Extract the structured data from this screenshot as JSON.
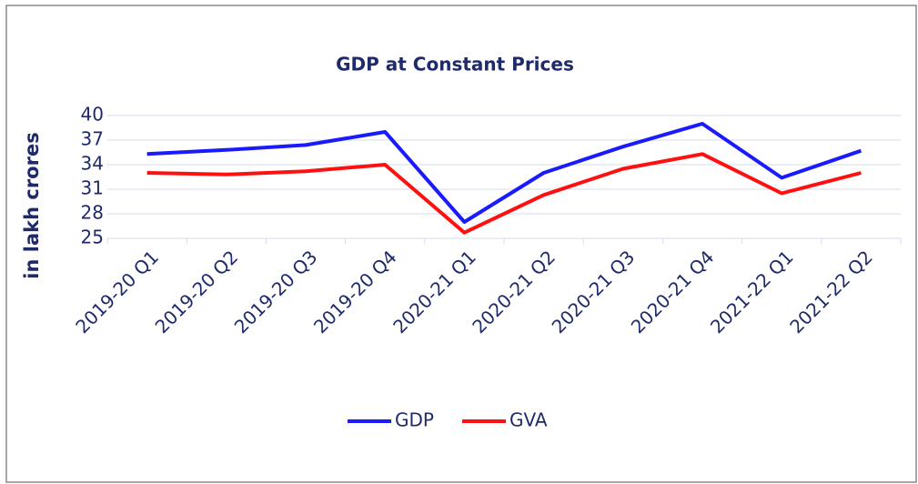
{
  "chart_data": {
    "type": "line",
    "title": "GDP at Constant Prices",
    "ylabel": "in lakh crores",
    "categories": [
      "2019-20 Q1",
      "2019-20 Q2",
      "2019-20 Q3",
      "2019-20 Q4",
      "2020-21 Q1",
      "2020-21 Q2",
      "2020-21 Q3",
      "2020-21 Q4",
      "2021-22 Q1",
      "2021-22 Q2"
    ],
    "series": [
      {
        "name": "GDP",
        "color": "#1a1aff",
        "values": [
          35.3,
          35.8,
          36.4,
          38.0,
          27.0,
          33.0,
          36.2,
          39.0,
          32.4,
          35.7
        ]
      },
      {
        "name": "GVA",
        "color": "#ff1010",
        "values": [
          33.0,
          32.8,
          33.2,
          34.0,
          25.7,
          30.3,
          33.5,
          35.3,
          30.5,
          33.0
        ]
      }
    ],
    "ylim": [
      25,
      40
    ],
    "yticks": [
      25,
      28,
      31,
      34,
      37,
      40
    ],
    "grid": true,
    "legend": "bottom"
  }
}
